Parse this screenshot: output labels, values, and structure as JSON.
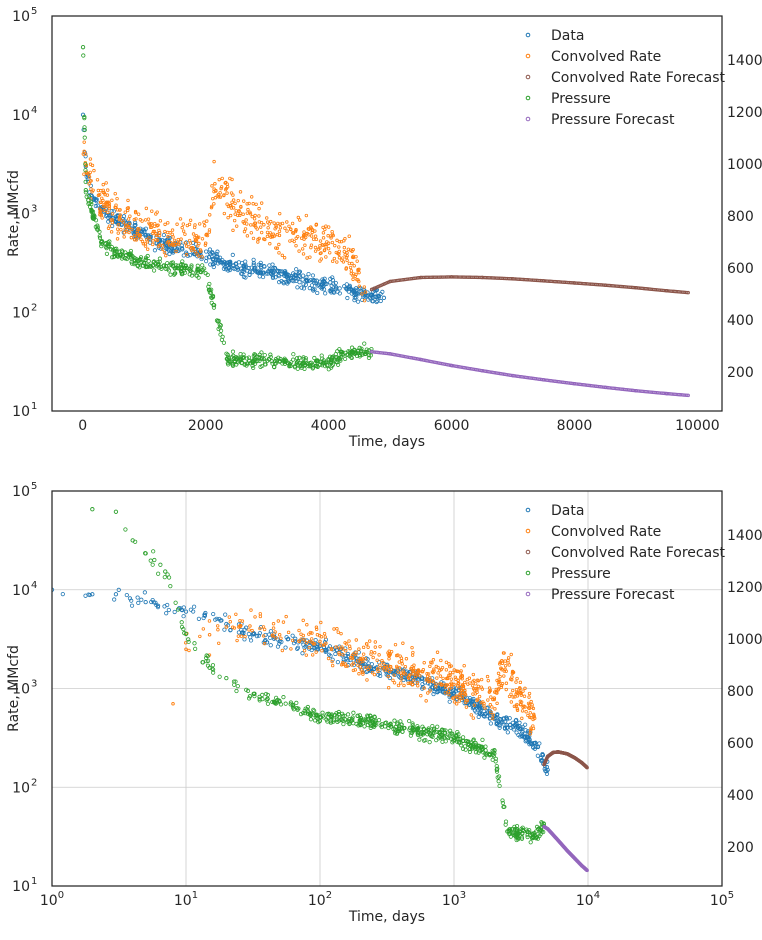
{
  "chart_data": [
    {
      "type": "scatter",
      "xscale": "linear",
      "yscale": "log",
      "xlabel": "Time, days",
      "ylabel": "Rate, MMcfd",
      "xlim": [
        -500,
        10400
      ],
      "ylim": [
        10,
        100000
      ],
      "y2lim": [
        50,
        1570
      ],
      "xticks": [
        0,
        2000,
        4000,
        6000,
        8000,
        10000
      ],
      "xtick_labels": [
        "0",
        "2000",
        "4000",
        "6000",
        "8000",
        "10000"
      ],
      "yticks": [
        10,
        100,
        1000,
        10000,
        100000
      ],
      "ytick_labels": [
        "10",
        "10",
        "10",
        "10",
        "10"
      ],
      "ytick_exponents": [
        "1",
        "2",
        "3",
        "4",
        "5"
      ],
      "y2ticks": [
        200,
        400,
        600,
        800,
        1000,
        1200,
        1400
      ],
      "y2tick_labels": [
        "200",
        "400",
        "600",
        "800",
        "1000",
        "1200",
        "1400"
      ],
      "grid": false,
      "legend_position": "top-right",
      "series": [
        {
          "name": "Data",
          "axis": "left",
          "color": "#1f77b4",
          "x": [
            5,
            50,
            150,
            300,
            500,
            800,
            1100,
            1500,
            1900,
            2300,
            2700,
            3100,
            3500,
            3900,
            4300,
            4600,
            4900
          ],
          "y": [
            10000,
            3000,
            1500,
            1100,
            900,
            700,
            550,
            450,
            400,
            320,
            280,
            250,
            220,
            190,
            170,
            150,
            140
          ]
        },
        {
          "name": "Convolved Rate",
          "axis": "left",
          "color": "#ff7f0e",
          "x": [
            10,
            100,
            300,
            600,
            900,
            1200,
            1600,
            2000,
            2150,
            2400,
            2800,
            3200,
            3600,
            4000,
            4300,
            4600
          ],
          "y": [
            4000,
            2500,
            1300,
            900,
            700,
            600,
            550,
            500,
            2000,
            1200,
            800,
            600,
            550,
            500,
            400,
            160
          ]
        },
        {
          "name": "Convolved Rate Forecast",
          "axis": "left",
          "color": "#8c564b",
          "x": [
            4700,
            5000,
            5500,
            6000,
            6500,
            7000,
            7500,
            8000,
            8500,
            9000,
            9500,
            9850
          ],
          "y": [
            170,
            205,
            225,
            228,
            225,
            218,
            208,
            198,
            188,
            177,
            165,
            158
          ]
        },
        {
          "name": "Pressure",
          "axis": "right",
          "color": "#2ca02c",
          "x": [
            5,
            50,
            150,
            300,
            600,
            1000,
            1500,
            2000,
            2350,
            2800,
            3200,
            3600,
            4000,
            4400,
            4700
          ],
          "y": [
            1450,
            900,
            820,
            700,
            650,
            620,
            600,
            580,
            250,
            245,
            240,
            235,
            245,
            275,
            278
          ]
        },
        {
          "name": "Pressure Forecast",
          "axis": "right",
          "color": "#9467bd",
          "x": [
            4700,
            5000,
            5500,
            6000,
            6500,
            7000,
            7500,
            8000,
            8500,
            9000,
            9500,
            9850
          ],
          "y": [
            278,
            270,
            248,
            225,
            205,
            186,
            170,
            155,
            141,
            128,
            117,
            110
          ]
        }
      ]
    },
    {
      "type": "scatter",
      "xscale": "log",
      "yscale": "log",
      "xlabel": "Time, days",
      "ylabel": "Rate, MMcfd",
      "xlim": [
        1,
        100000
      ],
      "ylim": [
        10,
        100000
      ],
      "y2lim": [
        50,
        1570
      ],
      "xticks": [
        1,
        10,
        100,
        1000,
        10000,
        100000
      ],
      "xtick_labels": [
        "10",
        "10",
        "10",
        "10",
        "10",
        "10"
      ],
      "xtick_exponents": [
        "0",
        "1",
        "2",
        "3",
        "4",
        "5"
      ],
      "yticks": [
        10,
        100,
        1000,
        10000,
        100000
      ],
      "ytick_labels": [
        "10",
        "10",
        "10",
        "10",
        "10"
      ],
      "ytick_exponents": [
        "1",
        "2",
        "3",
        "4",
        "5"
      ],
      "y2ticks": [
        200,
        400,
        600,
        800,
        1000,
        1200,
        1400
      ],
      "y2tick_labels": [
        "200",
        "400",
        "600",
        "800",
        "1000",
        "1200",
        "1400"
      ],
      "grid": true,
      "legend_position": "top-right",
      "series": [
        {
          "name": "Data",
          "axis": "left",
          "color": "#1f77b4",
          "x": [
            1,
            2,
            3,
            5,
            10,
            20,
            50,
            100,
            200,
            500,
            1000,
            2000,
            3000,
            4000,
            5000
          ],
          "y": [
            10000,
            9000,
            9000,
            7500,
            6000,
            4500,
            3000,
            2700,
            1800,
            1300,
            900,
            500,
            400,
            280,
            150
          ]
        },
        {
          "name": "Convolved Rate",
          "axis": "left",
          "color": "#ff7f0e",
          "x": [
            8,
            10,
            15,
            20,
            30,
            50,
            70,
            100,
            200,
            500,
            1000,
            2000,
            2300,
            3000,
            4000
          ],
          "y": [
            700,
            2500,
            3500,
            4200,
            4300,
            3500,
            3000,
            3000,
            2000,
            1500,
            1100,
            800,
            1800,
            900,
            500
          ]
        },
        {
          "name": "Convolved Rate Forecast",
          "axis": "left",
          "color": "#8c564b",
          "x": [
            4700,
            5000,
            5500,
            6000,
            7000,
            8000,
            9000,
            9850
          ],
          "y": [
            170,
            205,
            225,
            228,
            218,
            198,
            177,
            158
          ]
        },
        {
          "name": "Pressure",
          "axis": "right",
          "color": "#2ca02c",
          "x": [
            2,
            3,
            4,
            5,
            7,
            10,
            15,
            20,
            30,
            50,
            100,
            200,
            500,
            1000,
            2000,
            2500,
            4000,
            4700
          ],
          "y": [
            1500,
            1490,
            1380,
            1330,
            1260,
            1020,
            890,
            850,
            780,
            760,
            700,
            690,
            650,
            620,
            560,
            260,
            245,
            280
          ]
        },
        {
          "name": "Pressure Forecast",
          "axis": "right",
          "color": "#9467bd",
          "x": [
            4700,
            5000,
            6000,
            7000,
            8000,
            9000,
            9850
          ],
          "y": [
            278,
            270,
            225,
            186,
            155,
            128,
            110
          ]
        }
      ]
    }
  ]
}
